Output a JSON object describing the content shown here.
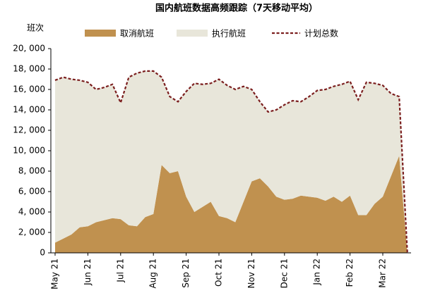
{
  "chart_data": {
    "type": "stacked-area-line",
    "title": "国内航班数据高频跟踪（7天移动平均）",
    "y_label": "班次",
    "categories": [
      "May 21",
      null,
      null,
      null,
      "Jun 21",
      null,
      null,
      null,
      "Jul 21",
      null,
      null,
      null,
      "Aug 21",
      null,
      null,
      null,
      "Sep 21",
      null,
      null,
      null,
      "Oct 21",
      null,
      null,
      null,
      "Nov 21",
      null,
      null,
      null,
      "Dec 21",
      null,
      null,
      null,
      "Jan 22",
      null,
      null,
      null,
      "Feb 22",
      null,
      null,
      null,
      "Mar 22",
      null,
      null,
      null
    ],
    "series": [
      {
        "name": "取消航班",
        "color": "#c0914f",
        "kind": "area",
        "values": [
          1000,
          1400,
          1800,
          2500,
          2600,
          3000,
          3200,
          3400,
          3300,
          2700,
          2600,
          3500,
          3800,
          8600,
          7800,
          8000,
          5500,
          4000,
          4500,
          5000,
          3600,
          3400,
          3000,
          5000,
          7000,
          7300,
          6500,
          5500,
          5200,
          5300,
          5600,
          5500,
          5400,
          5100,
          5500,
          5000,
          5600,
          3700,
          3700,
          4800,
          5500,
          7500,
          9500,
          0
        ]
      },
      {
        "name": "执行航班",
        "color": "#e8e6da",
        "kind": "area",
        "values": [
          15900,
          15800,
          15200,
          14400,
          14100,
          13000,
          13000,
          13100,
          11400,
          14500,
          15000,
          14300,
          14000,
          8600,
          7500,
          6800,
          10300,
          12600,
          12000,
          11600,
          13400,
          13000,
          13000,
          11300,
          9000,
          7500,
          7300,
          8500,
          9300,
          9600,
          9200,
          9800,
          10500,
          10900,
          10800,
          11500,
          11200,
          11300,
          13000,
          11800,
          10900,
          8100,
          5800,
          0
        ]
      },
      {
        "name": "计划总数",
        "color": "#7b1e1e",
        "kind": "line",
        "values": [
          16900,
          17200,
          17000,
          16900,
          16700,
          16000,
          16200,
          16500,
          14700,
          17200,
          17600,
          17800,
          17800,
          17200,
          15300,
          14800,
          15800,
          16600,
          16500,
          16600,
          17000,
          16400,
          16000,
          16300,
          16000,
          14800,
          13800,
          14000,
          14500,
          14900,
          14800,
          15300,
          15900,
          16000,
          16300,
          16500,
          16800,
          15000,
          16700,
          16600,
          16400,
          15600,
          15300,
          0
        ]
      }
    ],
    "ylim": [
      0,
      20000
    ],
    "yticks": [
      0,
      {
        "value": 2000,
        "label": "2, 000"
      },
      {
        "value": 4000,
        "label": "4, 000"
      },
      {
        "value": 6000,
        "label": "6, 000"
      },
      {
        "value": 8000,
        "label": "8, 000"
      },
      {
        "value": 10000,
        "label": "10, 000"
      },
      {
        "value": 12000,
        "label": "12, 000"
      },
      {
        "value": 14000,
        "label": "14, 000"
      },
      {
        "value": 16000,
        "label": "16, 000"
      },
      {
        "value": 18000,
        "label": "18, 000"
      },
      {
        "value": 20000,
        "label": "20, 000"
      }
    ],
    "legend": "top"
  }
}
